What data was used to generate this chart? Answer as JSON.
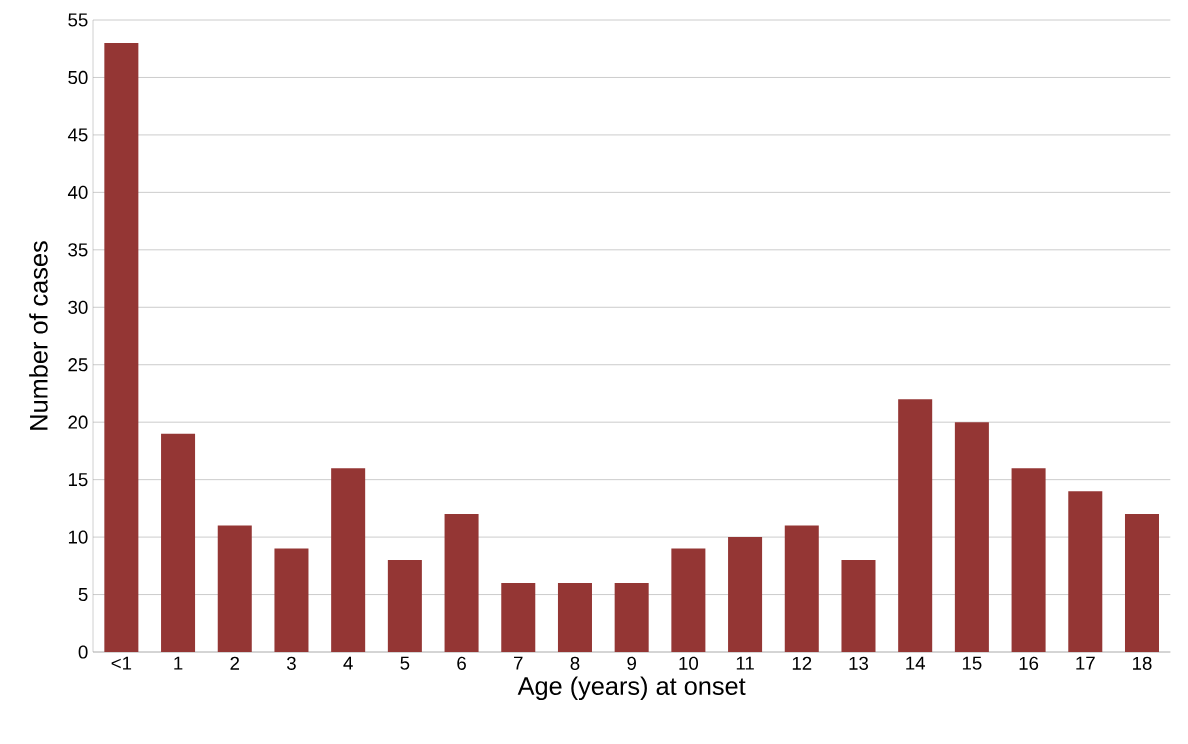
{
  "chart_data": {
    "type": "bar",
    "xlabel": "Age (years) at onset",
    "ylabel": "Number of cases",
    "categories": [
      "<1",
      "1",
      "2",
      "3",
      "4",
      "5",
      "6",
      "7",
      "8",
      "9",
      "10",
      "11",
      "12",
      "13",
      "14",
      "15",
      "16",
      "17",
      "18"
    ],
    "values": [
      53,
      19,
      11,
      9,
      16,
      8,
      12,
      6,
      6,
      6,
      9,
      10,
      11,
      8,
      22,
      20,
      16,
      14,
      12
    ],
    "color": "#943634",
    "ylim": [
      0,
      55
    ],
    "yticks": [
      0,
      5,
      10,
      15,
      20,
      25,
      30,
      35,
      40,
      45,
      50,
      55
    ],
    "grid": "y"
  }
}
